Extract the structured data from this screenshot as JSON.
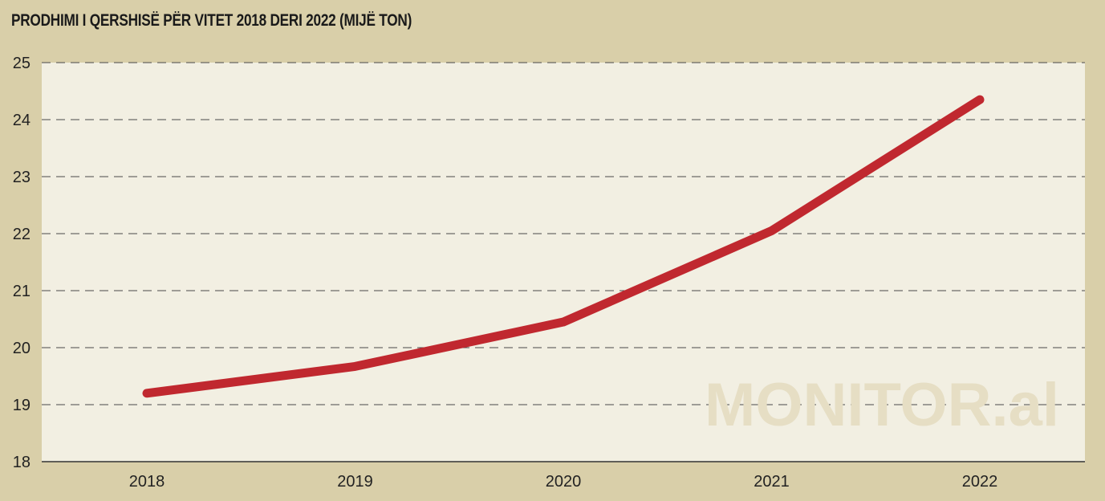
{
  "chart_data": {
    "type": "line",
    "title": "PRODHIMI I QERSHISË PËR VITET 2018 DERI 2022 (MIJË TON)",
    "xlabel": "",
    "ylabel": "",
    "categories": [
      "2018",
      "2019",
      "2020",
      "2021",
      "2022"
    ],
    "series": [
      {
        "values": [
          19.2,
          19.67,
          20.45,
          22.05,
          24.35
        ]
      }
    ],
    "ylim": [
      18,
      25
    ],
    "yticks": [
      18,
      19,
      20,
      21,
      22,
      23,
      24,
      25
    ],
    "grid": true,
    "line_color": "#c0282f",
    "plot_background": "#f2efe2",
    "page_background": "#d9cfa9",
    "watermark": "MONITOR.al"
  }
}
